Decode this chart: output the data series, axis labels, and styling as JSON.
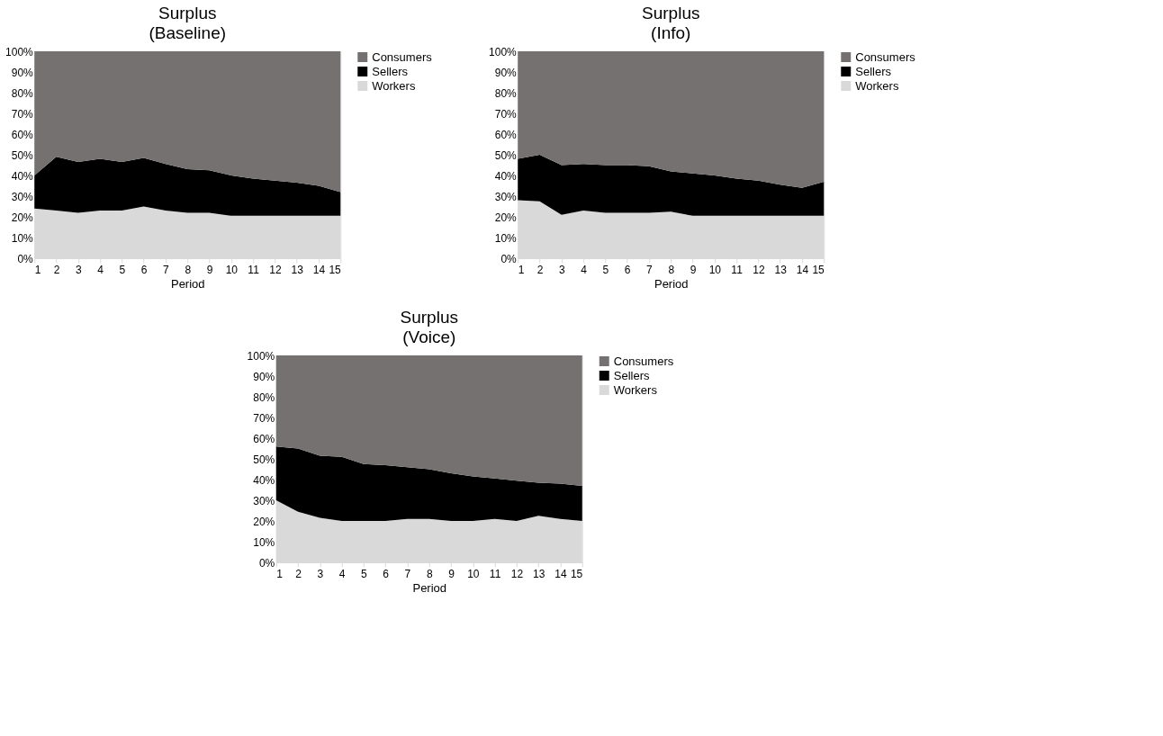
{
  "chart_data": [
    {
      "type": "area",
      "title": "Surplus",
      "subtitle": "(Baseline)",
      "xlabel": "Period",
      "stacked": true,
      "legend": "right",
      "grid": false,
      "x": [
        1,
        2,
        3,
        4,
        5,
        6,
        7,
        8,
        9,
        10,
        11,
        12,
        13,
        14,
        15
      ],
      "xlim": [
        1,
        15
      ],
      "xticks": [
        1,
        2,
        3,
        4,
        5,
        6,
        7,
        8,
        9,
        10,
        11,
        12,
        13,
        14,
        15
      ],
      "ylim": [
        0,
        100
      ],
      "yticks": [
        {
          "value": 0,
          "label": "0%"
        },
        {
          "value": 10,
          "label": "10%"
        },
        {
          "value": 20,
          "label": "20%"
        },
        {
          "value": 30,
          "label": "30%"
        },
        {
          "value": 40,
          "label": "40%"
        },
        {
          "value": 50,
          "label": "50%"
        },
        {
          "value": 60,
          "label": "60%"
        },
        {
          "value": 70,
          "label": "70%"
        },
        {
          "value": 80,
          "label": "80%"
        },
        {
          "value": 90,
          "label": "90%"
        },
        {
          "value": 100,
          "label": "100%"
        }
      ],
      "series": [
        {
          "name": "Workers",
          "color": "#d9d9d9",
          "values": [
            24,
            23,
            22,
            23,
            23,
            25,
            23,
            22,
            22,
            20.5,
            20.5,
            20.5,
            20.5,
            20.5,
            20.5
          ]
        },
        {
          "name": "Sellers",
          "color": "#000000",
          "values": [
            16,
            26,
            24.5,
            25,
            23.5,
            23.5,
            22.5,
            21,
            20.5,
            19.5,
            18,
            17,
            16,
            14.5,
            11.5
          ]
        },
        {
          "name": "Consumers",
          "color": "#767171",
          "values": [
            60,
            51,
            53.5,
            52,
            53.5,
            51.5,
            54.5,
            57,
            57.5,
            60,
            61.5,
            62.5,
            63.5,
            65,
            68
          ]
        }
      ]
    },
    {
      "type": "area",
      "title": "Surplus",
      "subtitle": "(Info)",
      "xlabel": "Period",
      "stacked": true,
      "legend": "right",
      "grid": false,
      "x": [
        1,
        2,
        3,
        4,
        5,
        6,
        7,
        8,
        9,
        10,
        11,
        12,
        13,
        14,
        15
      ],
      "xlim": [
        1,
        15
      ],
      "xticks": [
        1,
        2,
        3,
        4,
        5,
        6,
        7,
        8,
        9,
        10,
        11,
        12,
        13,
        14,
        15
      ],
      "ylim": [
        0,
        100
      ],
      "yticks": [
        {
          "value": 0,
          "label": "0%"
        },
        {
          "value": 10,
          "label": "10%"
        },
        {
          "value": 20,
          "label": "20%"
        },
        {
          "value": 30,
          "label": "30%"
        },
        {
          "value": 40,
          "label": "40%"
        },
        {
          "value": 50,
          "label": "50%"
        },
        {
          "value": 60,
          "label": "60%"
        },
        {
          "value": 70,
          "label": "70%"
        },
        {
          "value": 80,
          "label": "80%"
        },
        {
          "value": 90,
          "label": "90%"
        },
        {
          "value": 100,
          "label": "100%"
        }
      ],
      "series": [
        {
          "name": "Workers",
          "color": "#d9d9d9",
          "values": [
            28,
            27.5,
            21,
            23,
            22,
            22,
            22,
            22.5,
            20.5,
            20.5,
            20.5,
            20.5,
            20.5,
            20.5,
            20.5
          ]
        },
        {
          "name": "Sellers",
          "color": "#000000",
          "values": [
            20,
            22.5,
            24,
            22.5,
            23,
            23,
            22.5,
            19.5,
            20.5,
            19.5,
            18,
            17,
            15,
            13.5,
            16.5
          ]
        },
        {
          "name": "Consumers",
          "color": "#767171",
          "values": [
            52,
            50,
            55,
            54.5,
            55,
            55,
            55.5,
            58,
            59,
            60,
            61.5,
            62.5,
            64.5,
            66,
            63
          ]
        }
      ]
    },
    {
      "type": "area",
      "title": "Surplus",
      "subtitle": "(Voice)",
      "xlabel": "Period",
      "stacked": true,
      "legend": "right",
      "grid": false,
      "x": [
        1,
        2,
        3,
        4,
        5,
        6,
        7,
        8,
        9,
        10,
        11,
        12,
        13,
        14,
        15
      ],
      "xlim": [
        1,
        15
      ],
      "xticks": [
        1,
        2,
        3,
        4,
        5,
        6,
        7,
        8,
        9,
        10,
        11,
        12,
        13,
        14,
        15
      ],
      "ylim": [
        0,
        100
      ],
      "yticks": [
        {
          "value": 0,
          "label": "0%"
        },
        {
          "value": 10,
          "label": "10%"
        },
        {
          "value": 20,
          "label": "20%"
        },
        {
          "value": 30,
          "label": "30%"
        },
        {
          "value": 40,
          "label": "40%"
        },
        {
          "value": 50,
          "label": "50%"
        },
        {
          "value": 60,
          "label": "60%"
        },
        {
          "value": 70,
          "label": "70%"
        },
        {
          "value": 80,
          "label": "80%"
        },
        {
          "value": 90,
          "label": "90%"
        },
        {
          "value": 100,
          "label": "100%"
        }
      ],
      "series": [
        {
          "name": "Workers",
          "color": "#d9d9d9",
          "values": [
            30,
            24.5,
            21.5,
            20,
            20,
            20,
            21,
            21,
            20,
            20,
            21,
            20,
            22.5,
            21,
            20
          ]
        },
        {
          "name": "Sellers",
          "color": "#000000",
          "values": [
            26,
            30.5,
            30,
            31,
            27.5,
            27,
            25,
            24,
            23,
            21.5,
            19.5,
            19.5,
            16,
            17,
            17
          ]
        },
        {
          "name": "Consumers",
          "color": "#767171",
          "values": [
            44,
            45,
            48.5,
            49,
            52.5,
            53,
            54,
            55,
            57,
            58.5,
            59.5,
            60.5,
            61.5,
            62,
            63
          ]
        }
      ]
    }
  ]
}
